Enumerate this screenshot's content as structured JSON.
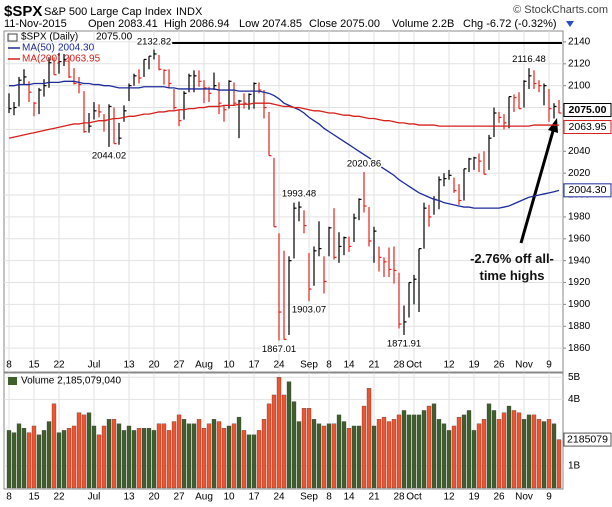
{
  "chart_data": [
    {
      "type": "ohlc",
      "title": "$SPX",
      "subtitle": "S&P 500 Large Cap Index",
      "exchange": "INDX",
      "source": "© StockCharts.com",
      "date": "11-Nov-2015",
      "stats": [
        "Open 2083.41",
        "High 2086.94",
        "Low 2074.85",
        "Close 2075.00",
        "Volume 2.2B",
        "Chg -6.72 (-0.32%)"
      ],
      "categories": [
        "8",
        null,
        null,
        null,
        null,
        "15",
        null,
        null,
        null,
        null,
        "22",
        null,
        null,
        null,
        null,
        null,
        null,
        "Jul",
        null,
        null,
        null,
        null,
        null,
        null,
        "13",
        null,
        null,
        null,
        null,
        "20",
        null,
        null,
        null,
        null,
        "27",
        null,
        null,
        null,
        null,
        "Aug",
        null,
        null,
        null,
        null,
        "10",
        null,
        null,
        null,
        null,
        "17",
        null,
        null,
        null,
        null,
        "24",
        null,
        null,
        null,
        null,
        null,
        "Sep",
        null,
        null,
        null,
        "8",
        null,
        null,
        null,
        "14",
        null,
        null,
        null,
        null,
        "21",
        null,
        null,
        null,
        null,
        "28",
        null,
        null,
        "Oct",
        null,
        null,
        null,
        null,
        null,
        null,
        "12",
        null,
        null,
        null,
        null,
        "19",
        null,
        null,
        null,
        null,
        "26",
        null,
        null,
        null,
        null,
        "Nov",
        null,
        null,
        null,
        null,
        "9",
        null,
        null
      ],
      "series": [
        {
          "name": "$SPX (Daily)",
          "last_label": "2075.00",
          "up_color": "#000000",
          "down_color": "#e3231b",
          "high": [
            2093,
            2085,
            2108,
            2115,
            2104,
            2085,
            2098,
            2106,
            2126,
            2126,
            2130,
            2129,
            2126,
            2116,
            2108,
            2095,
            2075,
            2085,
            2083,
            2074,
            2083,
            2080,
            2066,
            2082,
            2102,
            2111,
            2115,
            2124,
            2127,
            2133,
            2128,
            2115,
            2115,
            2097,
            2078,
            2095,
            2111,
            2114,
            2114,
            2105,
            2099,
            2112,
            2103,
            2082,
            2105,
            2103,
            2087,
            2093,
            2093,
            2103,
            2103,
            2096,
            2076,
            2034,
            1965,
            1949,
            1944,
            1993,
            1994,
            1986,
            1947,
            1953,
            1976,
            1944,
            1971,
            1988,
            1966,
            1962,
            1962,
            1983,
            1997,
            2021,
            1989,
            1971,
            1953,
            1943,
            1952,
            1953,
            1929,
            1899,
            1920,
            1927,
            1951,
            1993,
            1991,
            1999,
            2017,
            2020,
            2023,
            2016,
            2010,
            2024,
            2034,
            2035,
            2038,
            2040,
            2055,
            2080,
            2076,
            2074,
            2090,
            2092,
            2094,
            2105,
            2116,
            2114,
            2105,
            2102,
            2097,
            2084,
            2086.94
          ],
          "low": [
            2075,
            2073,
            2081,
            2101,
            2085,
            2072,
            2074,
            2090,
            2098,
            2110,
            2111,
            2118,
            2107,
            2101,
            2093,
            2057,
            2057,
            2069,
            2071,
            2058,
            2044,
            2047,
            2046,
            2067,
            2086,
            2100,
            2102,
            2108,
            2115,
            2124,
            2114,
            2101,
            2098,
            2078,
            2063,
            2069,
            2094,
            2094,
            2099,
            2084,
            2085,
            2096,
            2074,
            2067,
            2079,
            2082,
            2052,
            2079,
            2078,
            2079,
            2093,
            2070,
            2036,
            1971,
            1867,
            1868,
            1872,
            1942,
            1976,
            1965,
            1903,
            1917,
            1944,
            1910,
            1944,
            1941,
            1938,
            1945,
            1948,
            1957,
            1977,
            1984,
            1953,
            1938,
            1930,
            1925,
            1925,
            1919,
            1878,
            1872,
            1888,
            1900,
            1893,
            1951,
            1971,
            1982,
            1987,
            2008,
            2014,
            2002,
            1991,
            1995,
            2021,
            2023,
            2021,
            2019,
            2023,
            2053,
            2066,
            2060,
            2061,
            2076,
            2079,
            2080,
            2097,
            2097,
            2094,
            2082,
            2067,
            2070,
            2074.85
          ],
          "close": [
            2079,
            2080,
            2105,
            2108,
            2094,
            2084,
            2096,
            2100,
            2121,
            2110,
            2122,
            2124,
            2108,
            2102,
            2101,
            2058,
            2063,
            2077,
            2076,
            2068,
            2081,
            2047,
            2052,
            2077,
            2100,
            2109,
            2107,
            2124,
            2127,
            2129,
            2115,
            2114,
            2102,
            2080,
            2068,
            2093,
            2109,
            2109,
            2104,
            2098,
            2093,
            2100,
            2084,
            2078,
            2104,
            2084,
            2086,
            2084,
            2092,
            2102,
            2096,
            2080,
            2036,
            1971,
            1893,
            1868,
            1940,
            1988,
            1989,
            1972,
            1914,
            1949,
            1951,
            1921,
            1970,
            1943,
            1953,
            1961,
            1953,
            1979,
            1996,
            1990,
            1958,
            1967,
            1943,
            1939,
            1932,
            1931,
            1882,
            1884,
            1920,
            1923,
            1951,
            1988,
            1980,
            1996,
            2014,
            2015,
            2018,
            2004,
            1995,
            2024,
            2033,
            2034,
            2031,
            2019,
            2052,
            2075,
            2071,
            2066,
            2090,
            2089,
            2079,
            2104,
            2109,
            2102,
            2100,
            2100,
            2079,
            2081,
            2075
          ]
        },
        {
          "name": "MA(50)",
          "last_label": "2004.30",
          "color": "#1d2b9c",
          "values": [
            2100,
            2100,
            2101,
            2101,
            2101,
            2102,
            2102,
            2102,
            2103,
            2103,
            2103,
            2104,
            2104,
            2104,
            2103,
            2102,
            2102,
            2101,
            2101,
            2100,
            2100,
            2099,
            2098,
            2098,
            2098,
            2098,
            2098,
            2099,
            2099,
            2099,
            2099,
            2099,
            2098,
            2098,
            2097,
            2097,
            2097,
            2097,
            2097,
            2097,
            2097,
            2097,
            2096,
            2096,
            2096,
            2096,
            2095,
            2095,
            2095,
            2095,
            2095,
            2094,
            2093,
            2091,
            2088,
            2084,
            2082,
            2080,
            2078,
            2075,
            2071,
            2068,
            2065,
            2061,
            2058,
            2055,
            2052,
            2049,
            2046,
            2043,
            2040,
            2037,
            2034,
            2031,
            2027,
            2024,
            2021,
            2018,
            2014,
            2011,
            2008,
            2005,
            2002,
            2000,
            1998,
            1996,
            1995,
            1993,
            1992,
            1991,
            1990,
            1989,
            1989,
            1988,
            1988,
            1988,
            1988,
            1988,
            1988,
            1989,
            1990,
            1992,
            1994,
            1996,
            1998,
            1999,
            2000,
            2001,
            2002,
            2003,
            2004.3
          ]
        },
        {
          "name": "MA(200)",
          "last_label": "2063.95",
          "color": "#d5201b",
          "values": [
            2052,
            2053,
            2054,
            2055,
            2056,
            2057,
            2058,
            2059,
            2060,
            2061,
            2062,
            2063,
            2064,
            2065,
            2065,
            2066,
            2066,
            2067,
            2068,
            2068,
            2069,
            2070,
            2070,
            2071,
            2072,
            2072,
            2073,
            2074,
            2074,
            2075,
            2076,
            2076,
            2077,
            2077,
            2078,
            2078,
            2079,
            2079,
            2080,
            2080,
            2081,
            2081,
            2081,
            2082,
            2082,
            2082,
            2083,
            2083,
            2083,
            2084,
            2084,
            2084,
            2084,
            2083,
            2082,
            2081,
            2081,
            2080,
            2080,
            2079,
            2078,
            2077,
            2077,
            2076,
            2075,
            2075,
            2074,
            2073,
            2073,
            2072,
            2072,
            2071,
            2070,
            2070,
            2069,
            2068,
            2068,
            2067,
            2066,
            2066,
            2065,
            2065,
            2064,
            2064,
            2064,
            2064,
            2063,
            2063,
            2063,
            2063,
            2063,
            2063,
            2063,
            2063,
            2063,
            2063,
            2063,
            2063,
            2063,
            2063,
            2063,
            2063,
            2063,
            2063,
            2063,
            2064,
            2064,
            2064,
            2064,
            2064,
            2063.95
          ]
        }
      ],
      "annotations": [
        2132.82,
        2044.02,
        1993.48,
        1903.07,
        1867.01,
        2020.86,
        1871.91,
        2116.48
      ],
      "note": "-2.76% off all-time highs",
      "ylim": [
        1840,
        2150
      ],
      "yticks": [
        1860,
        1880,
        1900,
        1920,
        1940,
        1960,
        1980,
        2000,
        2020,
        2040,
        2060,
        2080,
        2100,
        2120,
        2140
      ],
      "grid": true
    },
    {
      "type": "bar",
      "title": "Volume 2,185,079,040",
      "categories": [
        "8",
        null,
        null,
        null,
        null,
        "15",
        null,
        null,
        null,
        null,
        "22",
        null,
        null,
        null,
        null,
        null,
        null,
        "Jul",
        null,
        null,
        null,
        null,
        null,
        null,
        "13",
        null,
        null,
        null,
        null,
        "20",
        null,
        null,
        null,
        null,
        "27",
        null,
        null,
        null,
        null,
        "Aug",
        null,
        null,
        null,
        null,
        "10",
        null,
        null,
        null,
        null,
        "17",
        null,
        null,
        null,
        null,
        "24",
        null,
        null,
        null,
        null,
        null,
        "Sep",
        null,
        null,
        null,
        "8",
        null,
        null,
        null,
        "14",
        null,
        null,
        null,
        null,
        "21",
        null,
        null,
        null,
        null,
        "28",
        null,
        null,
        "Oct",
        null,
        null,
        null,
        null,
        null,
        null,
        "12",
        null,
        null,
        null,
        null,
        "19",
        null,
        null,
        null,
        null,
        "26",
        null,
        null,
        null,
        null,
        "Nov",
        null,
        null,
        null,
        null,
        "9",
        null,
        null
      ],
      "values": [
        2600000000.0,
        2500000000.0,
        2900000000.0,
        2700000000.0,
        2500000000.0,
        2800000000.0,
        2400000000.0,
        2600000000.0,
        3000000000.0,
        3800000000.0,
        2500000000.0,
        2600000000.0,
        2700000000.0,
        2800000000.0,
        3400000000.0,
        3300000000.0,
        3400000000.0,
        2800000000.0,
        2400000000.0,
        2800000000.0,
        3100000000.0,
        3100000000.0,
        2900000000.0,
        2600000000.0,
        2800000000.0,
        2600000000.0,
        2700000000.0,
        2700000000.0,
        2700000000.0,
        2600000000.0,
        2900000000.0,
        2900000000.0,
        2600000000.0,
        3000000000.0,
        3300000000.0,
        3100000000.0,
        2900000000.0,
        2900000000.0,
        3100000000.0,
        2700000000.0,
        2900000000.0,
        3100000000.0,
        3000000000.0,
        2700000000.0,
        2800000000.0,
        2900000000.0,
        3200000000.0,
        2600000000.0,
        2400000000.0,
        2400000000.0,
        2600000000.0,
        3100000000.0,
        3800000000.0,
        4200000000.0,
        5000000000.0,
        4200000000.0,
        4800000000.0,
        3900000000.0,
        3000000000.0,
        3600000000.0,
        3600000000.0,
        3100000000.0,
        2900000000.0,
        2800000000.0,
        2900000000.0,
        2900000000.0,
        3300000000.0,
        3000000000.0,
        2700000000.0,
        2800000000.0,
        2800000000.0,
        3700000000.0,
        4500000000.0,
        2800000000.0,
        3100000000.0,
        3200000000.0,
        3000000000.0,
        3100000000.0,
        3300000000.0,
        3500000000.0,
        3300000000.0,
        3300000000.0,
        3300000000.0,
        3500000000.0,
        3700000000.0,
        3800000000.0,
        3100000000.0,
        2900000000.0,
        2600000000.0,
        2800000000.0,
        3200000000.0,
        3300000000.0,
        3500000000.0,
        2600000000.0,
        2900000000.0,
        3100000000.0,
        3800000000.0,
        3500000000.0,
        3100000000.0,
        3400000000.0,
        3700000000.0,
        3500000000.0,
        3400000000.0,
        3100000000.0,
        3300000000.0,
        3300000000.0,
        3100000000.0,
        3000000000.0,
        3100000000.0,
        2900000000.0,
        2185079040
      ],
      "last_label": "2185079",
      "up_color": "#3f5f2c",
      "down_color": "#f2522e",
      "ylim": [
        0,
        5100000000.0
      ],
      "yticks": [
        {
          "value": 1000000000.0,
          "label": "1B"
        },
        {
          "value": 4000000000.0,
          "label": "4B"
        },
        {
          "value": 5000000000.0,
          "label": "5B"
        }
      ],
      "grid": true
    }
  ]
}
